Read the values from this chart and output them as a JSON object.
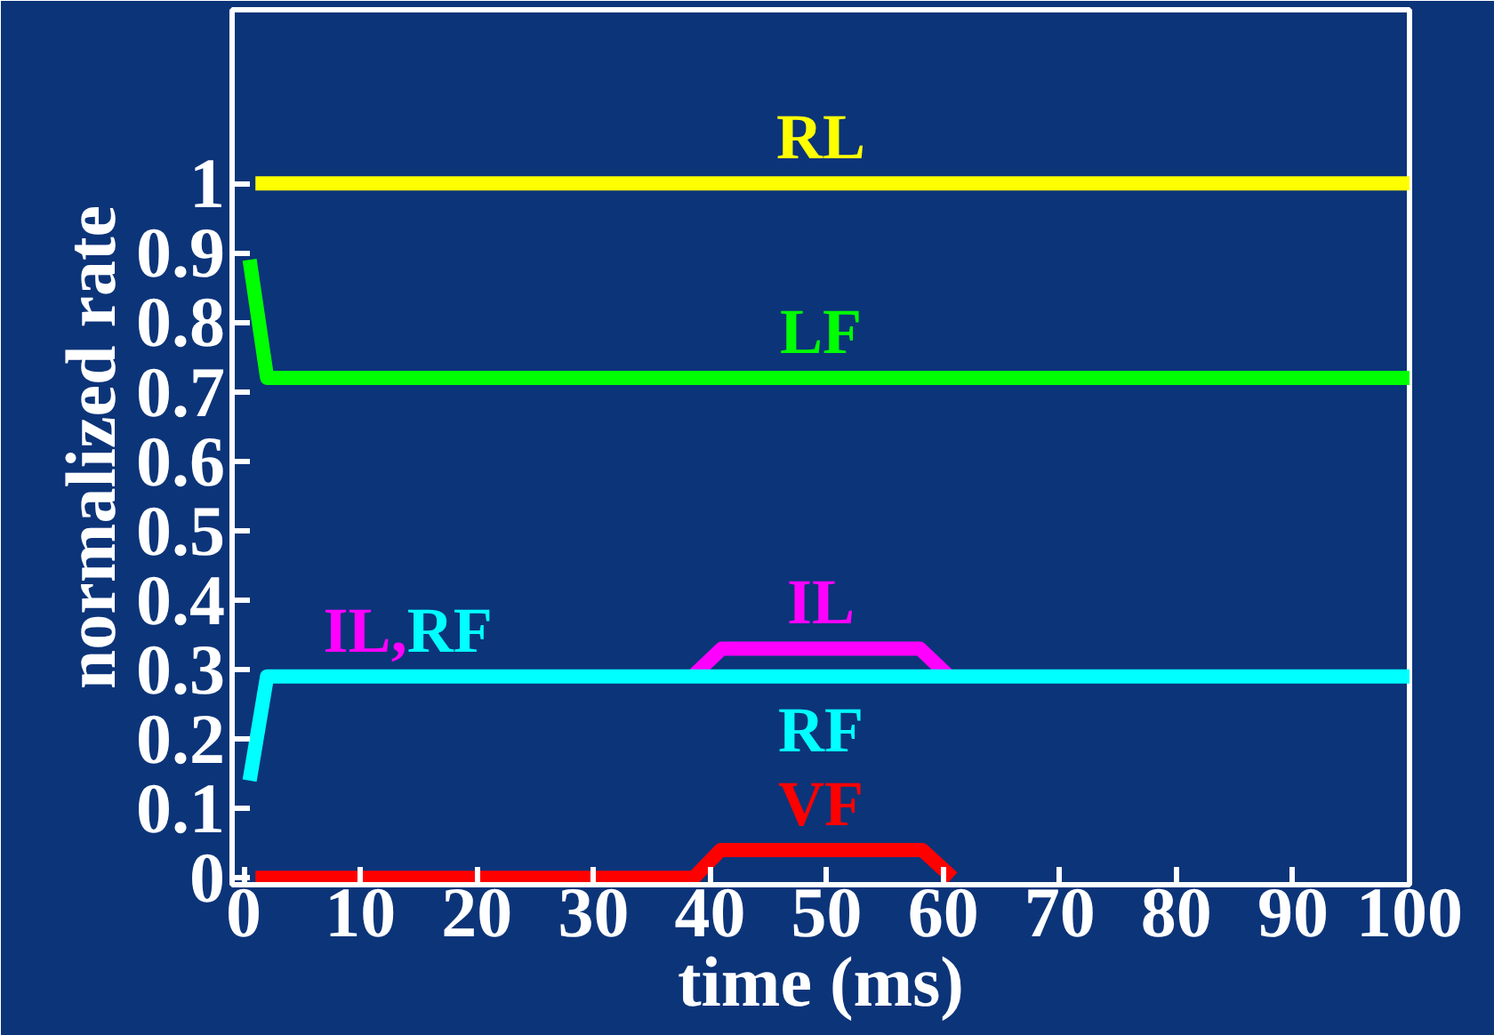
{
  "chart_data": {
    "type": "line",
    "xlabel": "time (ms)",
    "ylabel": "normalized rate",
    "xlim": [
      -1,
      100
    ],
    "ylim": [
      -0.01,
      1.25
    ],
    "xticks": [
      0,
      10,
      20,
      30,
      40,
      50,
      60,
      70,
      80,
      90,
      100
    ],
    "yticks": [
      0,
      0.1,
      0.2,
      0.3,
      0.4,
      0.5,
      0.6,
      0.7,
      0.8,
      0.9,
      1
    ],
    "grid": false,
    "marker": "none",
    "line_style": "solid",
    "series": [
      {
        "name": "RL",
        "color": "#ffff00",
        "x": [
          1,
          100
        ],
        "values": [
          1,
          1
        ]
      },
      {
        "name": "LF",
        "color": "#00ff00",
        "x": [
          0.5,
          2,
          100
        ],
        "values": [
          0.89,
          0.72,
          0.72
        ]
      },
      {
        "name": "IL",
        "color": "#ff00ff",
        "x": [
          38.5,
          41,
          58,
          60.5
        ],
        "values": [
          0.29,
          0.33,
          0.33,
          0.29
        ]
      },
      {
        "name": "RF",
        "color": "#00ffff",
        "x": [
          0.5,
          2,
          100
        ],
        "values": [
          0.14,
          0.29,
          0.29
        ]
      },
      {
        "name": "VF",
        "color": "#ff0000",
        "x": [
          1,
          38.6,
          40.9,
          58.2,
          60.8
        ],
        "values": [
          0,
          0,
          0.04,
          0.04,
          0
        ]
      }
    ],
    "annotations": [
      {
        "text": "IL,RF",
        "x": 14,
        "y": 0.29
      }
    ]
  }
}
